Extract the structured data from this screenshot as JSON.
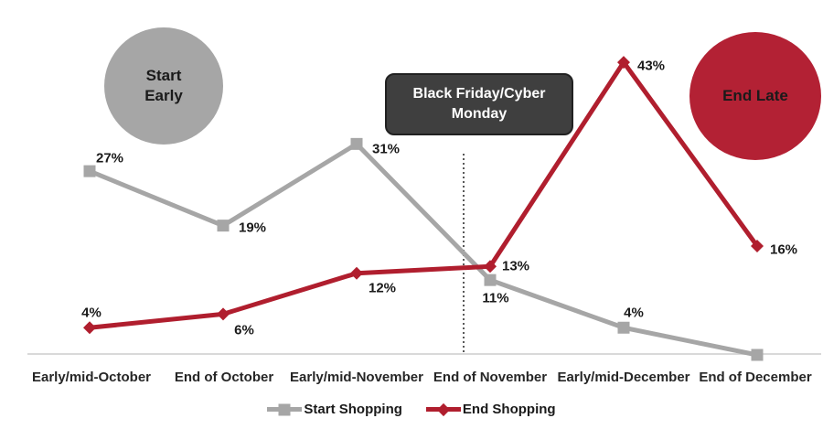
{
  "chart_data": {
    "type": "line",
    "categories": [
      "Early/mid-October",
      "End of October",
      "Early/mid-November",
      "End of November",
      "Early/mid-December",
      "End of December"
    ],
    "series": [
      {
        "name": "Start Shopping",
        "color": "#a6a6a6",
        "marker": "square",
        "values": [
          27,
          19,
          31,
          11,
          4,
          0
        ],
        "labels": [
          "27%",
          "19%",
          "31%",
          "11%",
          "4%",
          ""
        ]
      },
      {
        "name": "End Shopping",
        "color": "#b01e2e",
        "marker": "diamond",
        "values": [
          4,
          6,
          12,
          13,
          43,
          16
        ],
        "labels": [
          "4%",
          "6%",
          "12%",
          "13%",
          "43%",
          "16%"
        ]
      }
    ],
    "ylim": [
      0,
      45
    ],
    "grid": false,
    "axis_color": "#d9d9d9",
    "legend_position": "bottom",
    "annotations": [
      {
        "label": "Start Early",
        "shape": "circle",
        "color": "#a6a6a6",
        "text_color": "#1a1a1a"
      },
      {
        "label": "Black Friday/Cyber Monday",
        "shape": "rounded-box",
        "color": "#3f3f3f",
        "text_color": "#ffffff"
      },
      {
        "label": "End Late",
        "shape": "circle",
        "color": "#b32134",
        "text_color": "#1a1a1a"
      }
    ],
    "reference_line": {
      "at_category": "End of November",
      "style": "dotted",
      "color": "#595959"
    }
  },
  "legend": {
    "items": [
      {
        "label": "Start Shopping"
      },
      {
        "label": "End Shopping"
      }
    ]
  }
}
